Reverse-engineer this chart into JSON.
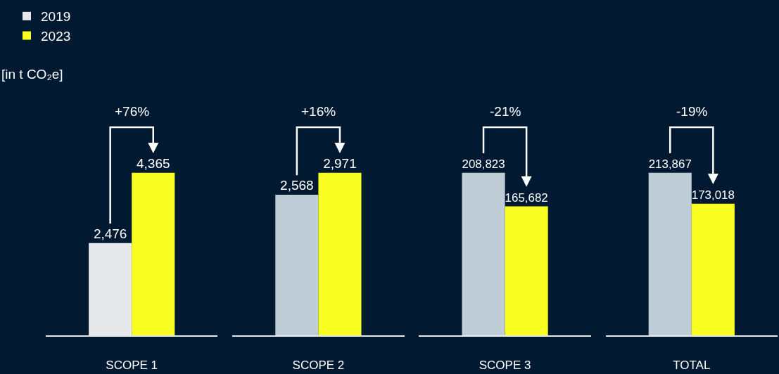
{
  "chart_data": [
    {
      "type": "bar",
      "categories": [
        "SCOPE 1"
      ],
      "ylabel": "[in t CO₂e]",
      "legend": "top left",
      "tick_labels": "x",
      "annotations": [
        "+76%"
      ],
      "series": [
        {
          "name": "2019",
          "color": "#e6e8ec",
          "values": [
            2476
          ],
          "value_labels": [
            "2,476"
          ]
        },
        {
          "name": "2023",
          "color": "#f9ff22",
          "values": [
            4365
          ],
          "value_labels": [
            "4,365"
          ]
        }
      ]
    },
    {
      "type": "bar",
      "categories": [
        "SCOPE 2"
      ],
      "tick_labels": "x",
      "annotations": [
        "+16%"
      ],
      "series": [
        {
          "color": "#bfcdd7",
          "values": [
            2568
          ],
          "value_labels": [
            "2,568"
          ]
        },
        {
          "color": "#f9ff22",
          "values": [
            2971
          ],
          "value_labels": [
            "2,971"
          ]
        }
      ]
    },
    {
      "type": "bar",
      "categories": [
        "SCOPE 3"
      ],
      "tick_labels": "x",
      "annotations": [
        "-21%"
      ],
      "series": [
        {
          "color": "#bfcdd7",
          "values": [
            208823
          ],
          "value_labels": [
            "208,823"
          ]
        },
        {
          "color": "#f9ff22",
          "values": [
            165682
          ],
          "value_labels": [
            "165,682"
          ]
        }
      ]
    },
    {
      "type": "bar",
      "categories": [
        "TOTAL"
      ],
      "tick_labels": "x",
      "annotations": [
        "-19%"
      ],
      "series": [
        {
          "color": "#bfcdd7",
          "values": [
            213867
          ],
          "value_labels": [
            "213,867"
          ]
        },
        {
          "color": "#f9ff22",
          "values": [
            173018
          ],
          "value_labels": [
            "173,018"
          ]
        }
      ]
    }
  ]
}
